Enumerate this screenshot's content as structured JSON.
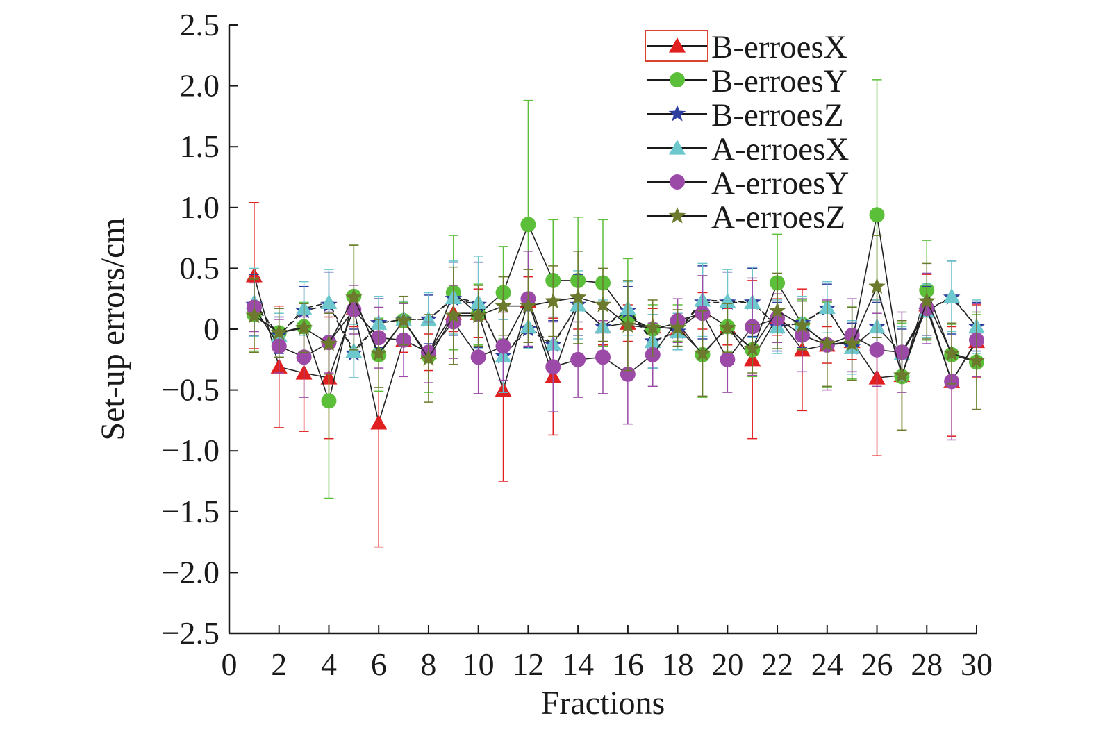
{
  "chart_data": {
    "type": "line",
    "subtype": "line-with-markers-and-error-bars",
    "title": "",
    "xlabel": "Fractions",
    "ylabel": "Set-up errors/cm",
    "xlim": [
      0,
      30
    ],
    "ylim": [
      -2.5,
      2.5
    ],
    "x_ticks": [
      "0",
      "2",
      "4",
      "6",
      "8",
      "10",
      "12",
      "14",
      "16",
      "18",
      "20",
      "22",
      "24",
      "26",
      "28",
      "30"
    ],
    "y_ticks": [
      "2.5",
      "2.0",
      "1.5",
      "1.0",
      "0.5",
      "0",
      "−0.5",
      "−1.0",
      "−1.5",
      "−2.0",
      "−2.5"
    ],
    "grid": false,
    "legend_position": "top-right",
    "x": [
      1,
      2,
      3,
      4,
      5,
      6,
      7,
      8,
      9,
      10,
      11,
      12,
      13,
      14,
      15,
      16,
      17,
      18,
      19,
      20,
      21,
      22,
      23,
      24,
      25,
      26,
      27,
      28,
      29,
      30
    ],
    "series": [
      {
        "name": "B-erroesX",
        "marker": "triangle",
        "color": "#e02020",
        "line_color": "#222222",
        "values": [
          0.44,
          -0.31,
          -0.36,
          -0.4,
          0.17,
          -0.77,
          -0.09,
          -0.19,
          0.13,
          0.13,
          -0.5,
          0.23,
          -0.39,
          0.2,
          0.02,
          0.05,
          0.02,
          0.0,
          0.15,
          0.02,
          -0.25,
          0.1,
          -0.17,
          -0.13,
          -0.1,
          -0.4,
          -0.38,
          0.2,
          -0.43,
          -0.1
        ],
        "errors": [
          0.6,
          0.5,
          0.48,
          0.5,
          0.15,
          1.02,
          0.1,
          0.15,
          0.15,
          0.2,
          0.75,
          0.2,
          0.48,
          0.2,
          0.15,
          0.15,
          0.15,
          0.1,
          0.15,
          0.15,
          0.65,
          0.15,
          0.5,
          0.15,
          0.15,
          0.64,
          0.45,
          0.25,
          0.45,
          0.3
        ]
      },
      {
        "name": "B-erroesY",
        "marker": "circle",
        "color": "#5cbf3a",
        "line_color": "#222222",
        "values": [
          0.12,
          -0.03,
          0.02,
          -0.59,
          0.27,
          -0.21,
          0.07,
          -0.22,
          0.3,
          0.12,
          0.3,
          0.86,
          0.4,
          0.4,
          0.38,
          0.1,
          0.0,
          0.05,
          -0.21,
          0.02,
          -0.17,
          0.38,
          0.04,
          -0.13,
          -0.11,
          0.94,
          -0.39,
          0.32,
          -0.21,
          -0.27
        ],
        "errors": [
          0.3,
          0.2,
          0.2,
          0.8,
          0.42,
          0.3,
          0.15,
          0.3,
          0.47,
          0.25,
          0.38,
          1.02,
          0.5,
          0.52,
          0.52,
          0.48,
          0.2,
          0.15,
          0.35,
          0.2,
          0.22,
          0.4,
          0.2,
          0.35,
          0.3,
          1.11,
          0.44,
          0.41,
          0.25,
          0.39
        ]
      },
      {
        "name": "B-erroesZ",
        "marker": "star",
        "color": "#2e3e9e",
        "line_color": "#222222",
        "values": [
          0.2,
          -0.05,
          0.15,
          0.2,
          -0.2,
          0.05,
          0.08,
          0.08,
          0.25,
          0.2,
          -0.22,
          0.0,
          -0.13,
          0.2,
          0.02,
          0.15,
          -0.1,
          -0.02,
          0.22,
          0.22,
          0.22,
          0.02,
          0.05,
          0.17,
          -0.15,
          0.02,
          -0.2,
          0.15,
          0.26,
          0.02
        ],
        "errors": [
          0.25,
          0.15,
          0.2,
          0.27,
          0.2,
          0.2,
          0.15,
          0.2,
          0.3,
          0.35,
          0.3,
          0.15,
          0.2,
          0.25,
          0.2,
          0.2,
          0.22,
          0.15,
          0.3,
          0.25,
          0.28,
          0.2,
          0.2,
          0.2,
          0.2,
          0.2,
          0.2,
          0.2,
          0.3,
          0.2
        ]
      },
      {
        "name": "A-erroesX",
        "marker": "triangle",
        "color": "#6cc8cc",
        "line_color": "#222222",
        "values": [
          0.22,
          -0.05,
          0.17,
          0.22,
          -0.18,
          0.05,
          0.08,
          0.08,
          0.26,
          0.22,
          -0.22,
          0.02,
          -0.12,
          0.2,
          0.02,
          0.17,
          -0.1,
          -0.02,
          0.24,
          0.23,
          0.22,
          0.02,
          0.05,
          0.18,
          -0.15,
          0.02,
          -0.2,
          0.15,
          0.27,
          0.02
        ],
        "errors": [
          0.28,
          0.18,
          0.22,
          0.27,
          0.22,
          0.22,
          0.15,
          0.22,
          0.3,
          0.38,
          0.3,
          0.18,
          0.22,
          0.28,
          0.22,
          0.22,
          0.22,
          0.15,
          0.3,
          0.26,
          0.29,
          0.22,
          0.22,
          0.21,
          0.22,
          0.22,
          0.22,
          0.22,
          0.29,
          0.22
        ]
      },
      {
        "name": "A-erroesY",
        "marker": "circle",
        "color": "#9b4aa8",
        "line_color": "#222222",
        "values": [
          0.18,
          -0.14,
          -0.23,
          -0.11,
          0.16,
          -0.07,
          -0.09,
          -0.19,
          0.06,
          -0.23,
          -0.14,
          0.25,
          -0.31,
          -0.25,
          -0.23,
          -0.37,
          -0.21,
          0.07,
          0.13,
          -0.25,
          0.02,
          0.09,
          -0.05,
          -0.13,
          -0.05,
          -0.17,
          -0.19,
          0.17,
          -0.43,
          -0.09
        ],
        "errors": [
          0.2,
          0.22,
          0.33,
          0.25,
          0.2,
          0.25,
          0.3,
          0.25,
          0.3,
          0.3,
          0.28,
          0.39,
          0.37,
          0.31,
          0.3,
          0.41,
          0.26,
          0.18,
          0.31,
          0.27,
          0.4,
          0.2,
          0.3,
          0.37,
          0.3,
          0.3,
          0.33,
          0.29,
          0.48,
          0.3
        ]
      },
      {
        "name": "A-erroesZ",
        "marker": "star",
        "color": "#6b7a2c",
        "line_color": "#222222",
        "values": [
          0.11,
          -0.03,
          0.01,
          -0.12,
          0.26,
          -0.2,
          0.07,
          -0.24,
          0.11,
          0.11,
          0.19,
          0.19,
          0.23,
          0.26,
          0.2,
          0.03,
          0.01,
          0.01,
          -0.2,
          0.01,
          -0.16,
          0.15,
          0.03,
          -0.12,
          -0.12,
          0.35,
          -0.38,
          0.23,
          -0.2,
          -0.26
        ],
        "errors": [
          0.3,
          0.2,
          0.2,
          0.25,
          0.43,
          0.28,
          0.2,
          0.36,
          0.4,
          0.25,
          0.24,
          0.3,
          0.29,
          0.38,
          0.3,
          0.37,
          0.23,
          0.15,
          0.35,
          0.2,
          0.2,
          0.31,
          0.2,
          0.35,
          0.3,
          0.42,
          0.45,
          0.31,
          0.25,
          0.4
        ]
      }
    ]
  }
}
